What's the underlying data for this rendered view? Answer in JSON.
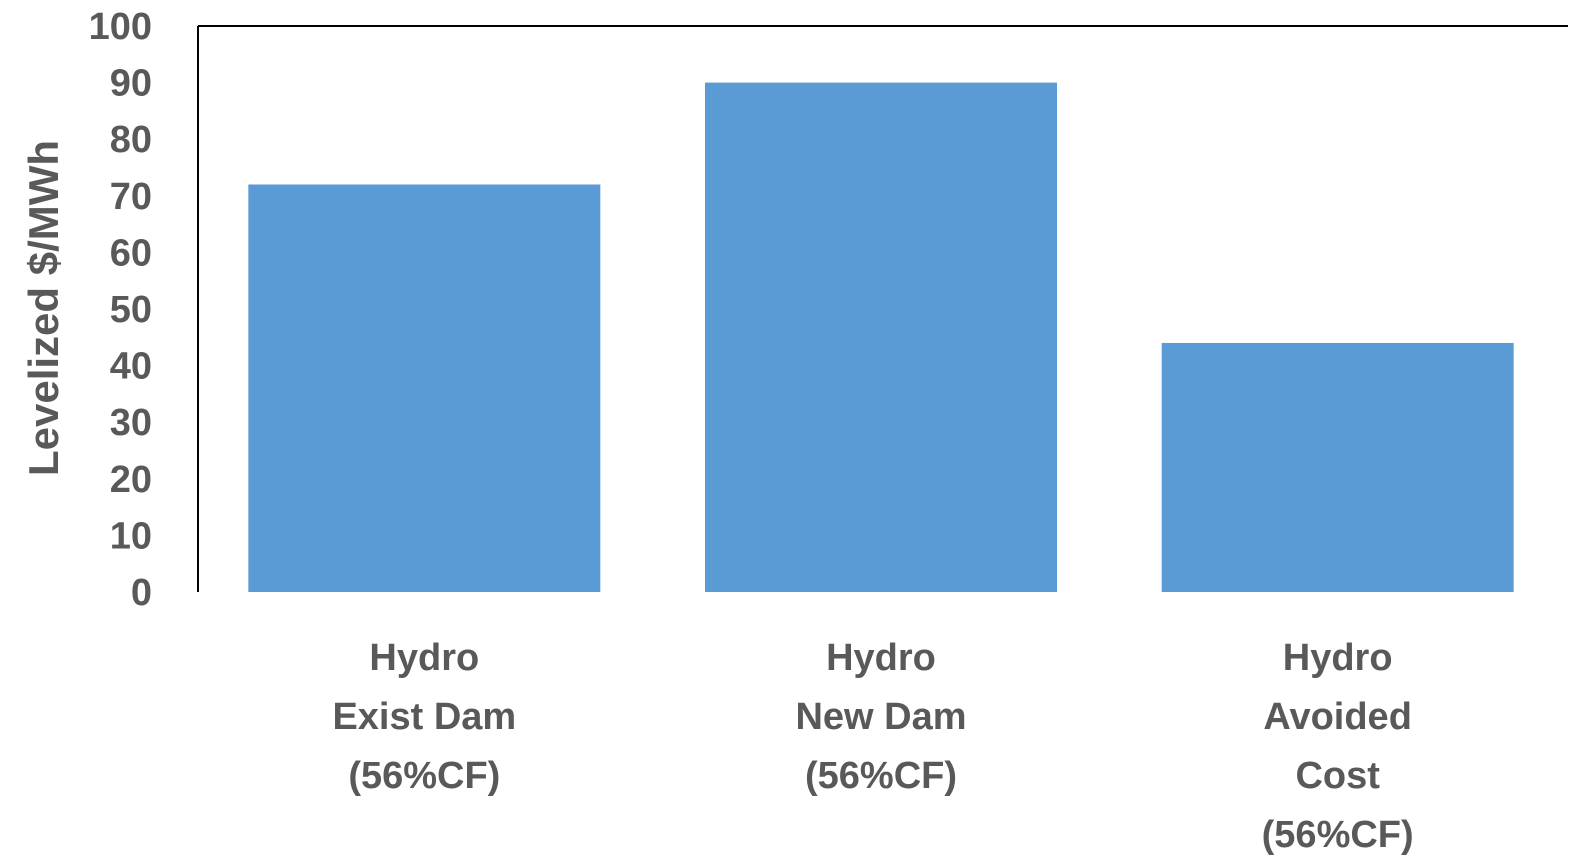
{
  "chart_data": {
    "type": "bar",
    "categories": [
      [
        "Hydro",
        "Exist Dam",
        "(56%CF)"
      ],
      [
        "Hydro",
        "New Dam",
        "(56%CF)"
      ],
      [
        "Hydro",
        "Avoided",
        "Cost",
        "(56%CF)"
      ]
    ],
    "values": [
      72,
      90,
      44
    ],
    "ylabel": "Levelized $/MWh",
    "xlabel": "",
    "title": "",
    "ylim": [
      0,
      100
    ],
    "yticks": [
      0,
      10,
      20,
      30,
      40,
      50,
      60,
      70,
      80,
      90,
      100
    ],
    "grid": false,
    "legend": "none",
    "bar_color": "#5b9bd5",
    "text_color": "#595959",
    "axis_color": "#000000"
  }
}
